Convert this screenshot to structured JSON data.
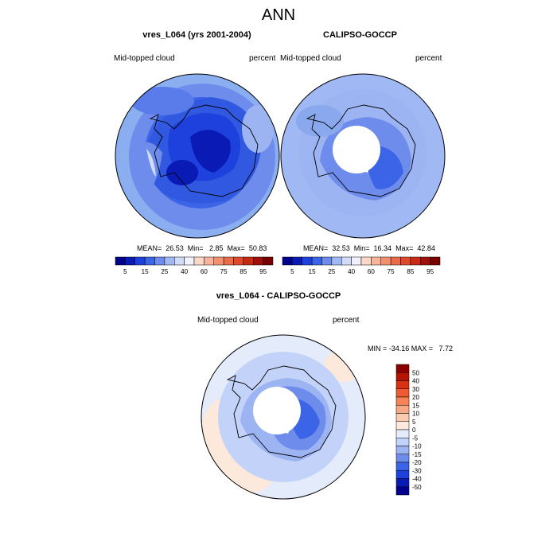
{
  "title": "ANN",
  "panels": [
    {
      "title": "vres_L064 (yrs 2001-2004)",
      "left_label": "Mid-topped cloud",
      "right_label": "percent",
      "stats": "MEAN=  26.53  Min=   2.85  Max=  50.83"
    },
    {
      "title": "CALIPSO-GOCCP",
      "left_label": "Mid-topped cloud",
      "right_label": "percent",
      "stats": "MEAN=  32.53  Min=  16.34  Max=  42.84"
    }
  ],
  "diff_panel": {
    "title": "vres_L064 - CALIPSO-GOCCP",
    "left_label": "Mid-topped cloud",
    "right_label": "percent",
    "stats": "MIN = -34.16 MAX =   7.72"
  },
  "colorbar_abs": {
    "tick_labels": [
      "5",
      "15",
      "25",
      "40",
      "60",
      "75",
      "85",
      "95"
    ],
    "colors": [
      "#00008c",
      "#0a1ab4",
      "#1e40dc",
      "#3c64e6",
      "#6e8cec",
      "#a0b8f4",
      "#d0dcf8",
      "#f2f2ff",
      "#fbd8c8",
      "#f7b49a",
      "#f29070",
      "#ec6a48",
      "#e04a2a",
      "#c82a14",
      "#a01008",
      "#780000"
    ]
  },
  "colorbar_diff": {
    "tick_labels": [
      "50",
      "40",
      "30",
      "20",
      "15",
      "10",
      "5",
      "0",
      "-5",
      "-10",
      "-15",
      "-20",
      "-30",
      "-40",
      "-50"
    ],
    "colors": [
      "#8c0000",
      "#b41400",
      "#d83214",
      "#ee5a32",
      "#f48458",
      "#f8a884",
      "#fbcbb0",
      "#fde8dc",
      "#e4ecfc",
      "#c2d2f8",
      "#9cb4f2",
      "#6e8cec",
      "#3c64e6",
      "#1e40dc",
      "#0a1ab4",
      "#00008c"
    ]
  }
}
